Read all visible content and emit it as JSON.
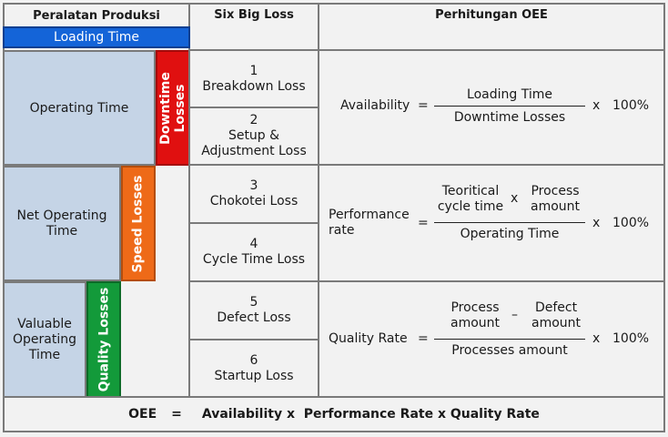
{
  "headers": {
    "peralatan": "Peralatan Produksi",
    "six_big_loss": "Six Big Loss",
    "perhitungan": "Perhitungan OEE"
  },
  "time_bars": {
    "loading_time": "Loading Time",
    "operating_time": "Operating Time",
    "net_operating_time": "Net Operating Time",
    "valuable_operating_time": "Valuable Operating Time"
  },
  "loss_bars": {
    "downtime_losses": "Downtime Losses",
    "speed_losses": "Speed Losses",
    "quality_losses": "Quality Losses"
  },
  "losses": [
    {
      "num": "1",
      "name": "Breakdown Loss"
    },
    {
      "num": "2",
      "name": "Setup & Adjustment Loss"
    },
    {
      "num": "3",
      "name": "Chokotei Loss"
    },
    {
      "num": "4",
      "name": "Cycle Time Loss"
    },
    {
      "num": "5",
      "name": "Defect Loss"
    },
    {
      "num": "6",
      "name": "Startup Loss"
    }
  ],
  "formulas": {
    "availability": {
      "label": "Availability",
      "eq": "=",
      "numerator": "Loading Time",
      "denominator": "Downtime Losses",
      "mult": "x",
      "pct": "100%"
    },
    "performance": {
      "label": "Performance rate",
      "eq": "=",
      "num_a": "Teoritical cycle time",
      "num_op": "x",
      "num_b": "Process amount",
      "denominator": "Operating Time",
      "mult": "x",
      "pct": "100%"
    },
    "quality": {
      "label": "Quality Rate",
      "eq": "=",
      "num_a": "Process amount",
      "num_op": "–",
      "num_b": "Defect amount",
      "denominator": "Processes amount",
      "mult": "x",
      "pct": "100%"
    }
  },
  "footer": {
    "oee": "OEE",
    "eq": "=",
    "formula": "Availability x  Performance Rate x Quality Rate"
  },
  "colors": {
    "loading_blue": "#1464d8",
    "light_blue": "#c5d4e6",
    "downtime_red": "#e01010",
    "speed_orange": "#ee6a18",
    "quality_green": "#139a3a",
    "border": "#7a7a7a",
    "background": "#f2f2f2"
  }
}
